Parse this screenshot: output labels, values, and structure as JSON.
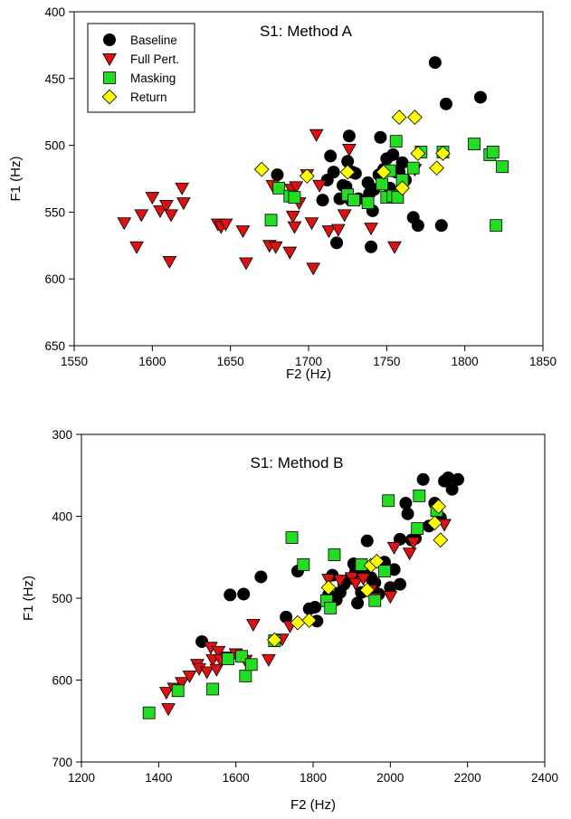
{
  "chart_data": [
    {
      "type": "scatter",
      "title": "S1: Method A",
      "xlabel": "F2 (Hz)",
      "ylabel": "F1 (Hz)",
      "xlim": [
        1550,
        1850
      ],
      "ylim": [
        650,
        400
      ],
      "y_axis_inverted": true,
      "xticks": [
        "1550",
        "1600",
        "1650",
        "1700",
        "1750",
        "1800",
        "1850"
      ],
      "yticks": [
        "400",
        "450",
        "500",
        "550",
        "600",
        "650"
      ],
      "legend_position": "top-left",
      "grid": false,
      "series": [
        {
          "name": "Baseline",
          "marker": "circle",
          "color": "#000000",
          "points": [
            [
              1680,
              522
            ],
            [
              1709,
              541
            ],
            [
              1712,
              526
            ],
            [
              1714,
              508
            ],
            [
              1716,
              520
            ],
            [
              1718,
              573
            ],
            [
              1720,
              540
            ],
            [
              1722,
              530
            ],
            [
              1724,
              531
            ],
            [
              1725,
              512
            ],
            [
              1726,
              493
            ],
            [
              1727,
              541
            ],
            [
              1728,
              520
            ],
            [
              1730,
              521
            ],
            [
              1732,
              540
            ],
            [
              1738,
              528
            ],
            [
              1739,
              536
            ],
            [
              1740,
              576
            ],
            [
              1741,
              549
            ],
            [
              1742,
              533
            ],
            [
              1745,
              522
            ],
            [
              1746,
              494
            ],
            [
              1748,
              518
            ],
            [
              1750,
              510
            ],
            [
              1752,
              532
            ],
            [
              1754,
              507
            ],
            [
              1756,
              520
            ],
            [
              1758,
              520
            ],
            [
              1760,
              513
            ],
            [
              1762,
              526
            ],
            [
              1767,
              554
            ],
            [
              1770,
              560
            ],
            [
              1781,
              438
            ],
            [
              1785,
              560
            ],
            [
              1788,
              469
            ],
            [
              1810,
              464
            ]
          ]
        },
        {
          "name": "Full Pert.",
          "marker": "triangle-down",
          "color": "#dd1111",
          "points": [
            [
              1582,
              558
            ],
            [
              1590,
              576
            ],
            [
              1593,
              552
            ],
            [
              1600,
              539
            ],
            [
              1605,
              549
            ],
            [
              1609,
              545
            ],
            [
              1611,
              587
            ],
            [
              1612,
              552
            ],
            [
              1619,
              532
            ],
            [
              1620,
              543
            ],
            [
              1642,
              559
            ],
            [
              1644,
              561
            ],
            [
              1647,
              559
            ],
            [
              1658,
              564
            ],
            [
              1660,
              588
            ],
            [
              1675,
              575
            ],
            [
              1677,
              530
            ],
            [
              1679,
              576
            ],
            [
              1688,
              580
            ],
            [
              1689,
              533
            ],
            [
              1690,
              553
            ],
            [
              1691,
              561
            ],
            [
              1692,
              531
            ],
            [
              1694,
              543
            ],
            [
              1699,
              522
            ],
            [
              1702,
              558
            ],
            [
              1703,
              592
            ],
            [
              1705,
              492
            ],
            [
              1707,
              530
            ],
            [
              1713,
              564
            ],
            [
              1719,
              563
            ],
            [
              1723,
              552
            ],
            [
              1726,
              503
            ],
            [
              1740,
              562
            ],
            [
              1755,
              576
            ],
            [
              1768,
              518
            ]
          ]
        },
        {
          "name": "Masking",
          "marker": "square",
          "color": "#22dd22",
          "points": [
            [
              1676,
              556
            ],
            [
              1681,
              532
            ],
            [
              1688,
              538
            ],
            [
              1691,
              539
            ],
            [
              1725,
              537
            ],
            [
              1729,
              541
            ],
            [
              1738,
              543
            ],
            [
              1747,
              529
            ],
            [
              1750,
              539
            ],
            [
              1752,
              519
            ],
            [
              1754,
              538
            ],
            [
              1756,
              497
            ],
            [
              1757,
              539
            ],
            [
              1760,
              526
            ],
            [
              1767,
              517
            ],
            [
              1772,
              505
            ],
            [
              1786,
              505
            ],
            [
              1806,
              499
            ],
            [
              1816,
              507
            ],
            [
              1818,
              505
            ],
            [
              1820,
              560
            ],
            [
              1824,
              516
            ]
          ]
        },
        {
          "name": "Return",
          "marker": "diamond",
          "color": "#ffff00",
          "points": [
            [
              1670,
              518
            ],
            [
              1699,
              523
            ],
            [
              1725,
              520
            ],
            [
              1748,
              520
            ],
            [
              1758,
              479
            ],
            [
              1760,
              532
            ],
            [
              1768,
              479
            ],
            [
              1770,
              506
            ],
            [
              1782,
              517
            ],
            [
              1786,
              506
            ]
          ]
        }
      ]
    },
    {
      "type": "scatter",
      "title": "S1: Method B",
      "xlabel": "F2 (Hz)",
      "ylabel": "F1 (Hz)",
      "xlim": [
        1200,
        2400
      ],
      "ylim": [
        700,
        300
      ],
      "y_axis_inverted": true,
      "xticks": [
        "1200",
        "1400",
        "1600",
        "1800",
        "2000",
        "2200",
        "2400"
      ],
      "yticks": [
        "300",
        "400",
        "500",
        "600",
        "700"
      ],
      "grid": false,
      "series": [
        {
          "name": "Baseline",
          "marker": "circle",
          "color": "#000000",
          "points": [
            [
              1512,
              553
            ],
            [
              1585,
              496
            ],
            [
              1620,
              495
            ],
            [
              1665,
              474
            ],
            [
              1730,
              523
            ],
            [
              1760,
              467
            ],
            [
              1790,
              513
            ],
            [
              1805,
              511
            ],
            [
              1810,
              528
            ],
            [
              1840,
              496
            ],
            [
              1850,
              472
            ],
            [
              1860,
              502
            ],
            [
              1870,
              493
            ],
            [
              1880,
              483
            ],
            [
              1895,
              476
            ],
            [
              1905,
              458
            ],
            [
              1910,
              468
            ],
            [
              1915,
              506
            ],
            [
              1925,
              493
            ],
            [
              1935,
              465
            ],
            [
              1940,
              430
            ],
            [
              1950,
              475
            ],
            [
              1960,
              481
            ],
            [
              1970,
              495
            ],
            [
              1985,
              456
            ],
            [
              2000,
              487
            ],
            [
              2010,
              465
            ],
            [
              2025,
              428
            ],
            [
              2025,
              483
            ],
            [
              2040,
              384
            ],
            [
              2045,
              397
            ],
            [
              2055,
              429
            ],
            [
              2065,
              427
            ],
            [
              2085,
              355
            ],
            [
              2100,
              412
            ],
            [
              2115,
              384
            ],
            [
              2130,
              402
            ],
            [
              2140,
              357
            ],
            [
              2150,
              353
            ],
            [
              2160,
              367
            ],
            [
              2175,
              355
            ]
          ]
        },
        {
          "name": "Full Pert.",
          "marker": "triangle-down",
          "color": "#dd1111",
          "points": [
            [
              1420,
              615
            ],
            [
              1425,
              635
            ],
            [
              1440,
              610
            ],
            [
              1460,
              603
            ],
            [
              1480,
              595
            ],
            [
              1500,
              581
            ],
            [
              1505,
              586
            ],
            [
              1525,
              590
            ],
            [
              1535,
              560
            ],
            [
              1540,
              575
            ],
            [
              1550,
              587
            ],
            [
              1555,
              565
            ],
            [
              1560,
              575
            ],
            [
              1575,
              572
            ],
            [
              1600,
              568
            ],
            [
              1625,
              576
            ],
            [
              1645,
              532
            ],
            [
              1685,
              575
            ],
            [
              1720,
              550
            ],
            [
              1740,
              534
            ],
            [
              1840,
              477
            ],
            [
              1870,
              478
            ],
            [
              1900,
              475
            ],
            [
              1910,
              482
            ],
            [
              1930,
              476
            ],
            [
              1950,
              490
            ],
            [
              1960,
              500
            ],
            [
              2000,
              498
            ],
            [
              2010,
              438
            ],
            [
              2050,
              445
            ],
            [
              2060,
              432
            ],
            [
              2140,
              410
            ]
          ]
        },
        {
          "name": "Masking",
          "marker": "square",
          "color": "#22dd22",
          "points": [
            [
              1375,
              640
            ],
            [
              1450,
              613
            ],
            [
              1540,
              611
            ],
            [
              1580,
              574
            ],
            [
              1615,
              571
            ],
            [
              1625,
              595
            ],
            [
              1640,
              581
            ],
            [
              1700,
              552
            ],
            [
              1745,
              426
            ],
            [
              1775,
              459
            ],
            [
              1835,
              503
            ],
            [
              1845,
              512
            ],
            [
              1855,
              447
            ],
            [
              1925,
              459
            ],
            [
              1960,
              503
            ],
            [
              1985,
              467
            ],
            [
              1995,
              381
            ],
            [
              2070,
              415
            ],
            [
              2075,
              375
            ],
            [
              2120,
              393
            ]
          ]
        },
        {
          "name": "Return",
          "marker": "diamond",
          "color": "#ffff00",
          "points": [
            [
              1700,
              551
            ],
            [
              1760,
              530
            ],
            [
              1790,
              527
            ],
            [
              1840,
              487
            ],
            [
              1940,
              490
            ],
            [
              1950,
              460
            ],
            [
              1965,
              455
            ],
            [
              2115,
              408
            ],
            [
              2125,
              388
            ],
            [
              2130,
              429
            ]
          ]
        }
      ]
    }
  ]
}
